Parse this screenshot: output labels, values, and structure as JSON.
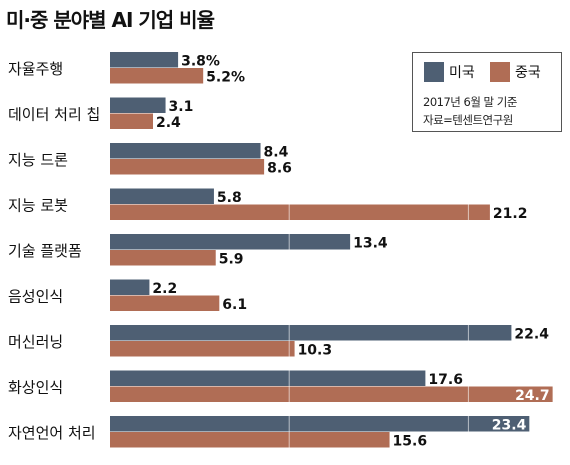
{
  "colors": {
    "us": "#4e5f73",
    "china": "#b06d55",
    "gridline": "#ffffff"
  },
  "chart_data": {
    "type": "bar",
    "orientation": "horizontal",
    "title": "미·중 분야별 AI 기업 비율",
    "categories": [
      "자율주행",
      "데이터 처리 칩",
      "지능 드론",
      "지능 로봇",
      "기술 플랫폼",
      "음성인식",
      "머신러닝",
      "화상인식",
      "자연언어 처리"
    ],
    "series": [
      {
        "name": "미국",
        "values": [
          3.8,
          3.1,
          8.4,
          5.8,
          13.4,
          2.2,
          22.4,
          17.6,
          23.4
        ],
        "labels": [
          "3.8%",
          "3.1",
          "8.4",
          "5.8",
          "13.4",
          "2.2",
          "22.4",
          "17.6",
          "23.4"
        ]
      },
      {
        "name": "중국",
        "values": [
          5.2,
          2.4,
          8.6,
          21.2,
          5.9,
          6.1,
          10.3,
          24.7,
          15.6
        ],
        "labels": [
          "5.2%",
          "2.4",
          "8.6",
          "21.2",
          "5.9",
          "6.1",
          "10.3",
          "24.7",
          "15.6"
        ]
      }
    ],
    "xlim": [
      0,
      25
    ],
    "unit": "%",
    "legend_position": "top-right"
  },
  "legend": {
    "us_label": "미국",
    "china_label": "중국",
    "note_date": "2017년 6월 말 기준",
    "note_source": "자료=텐센트연구원"
  }
}
